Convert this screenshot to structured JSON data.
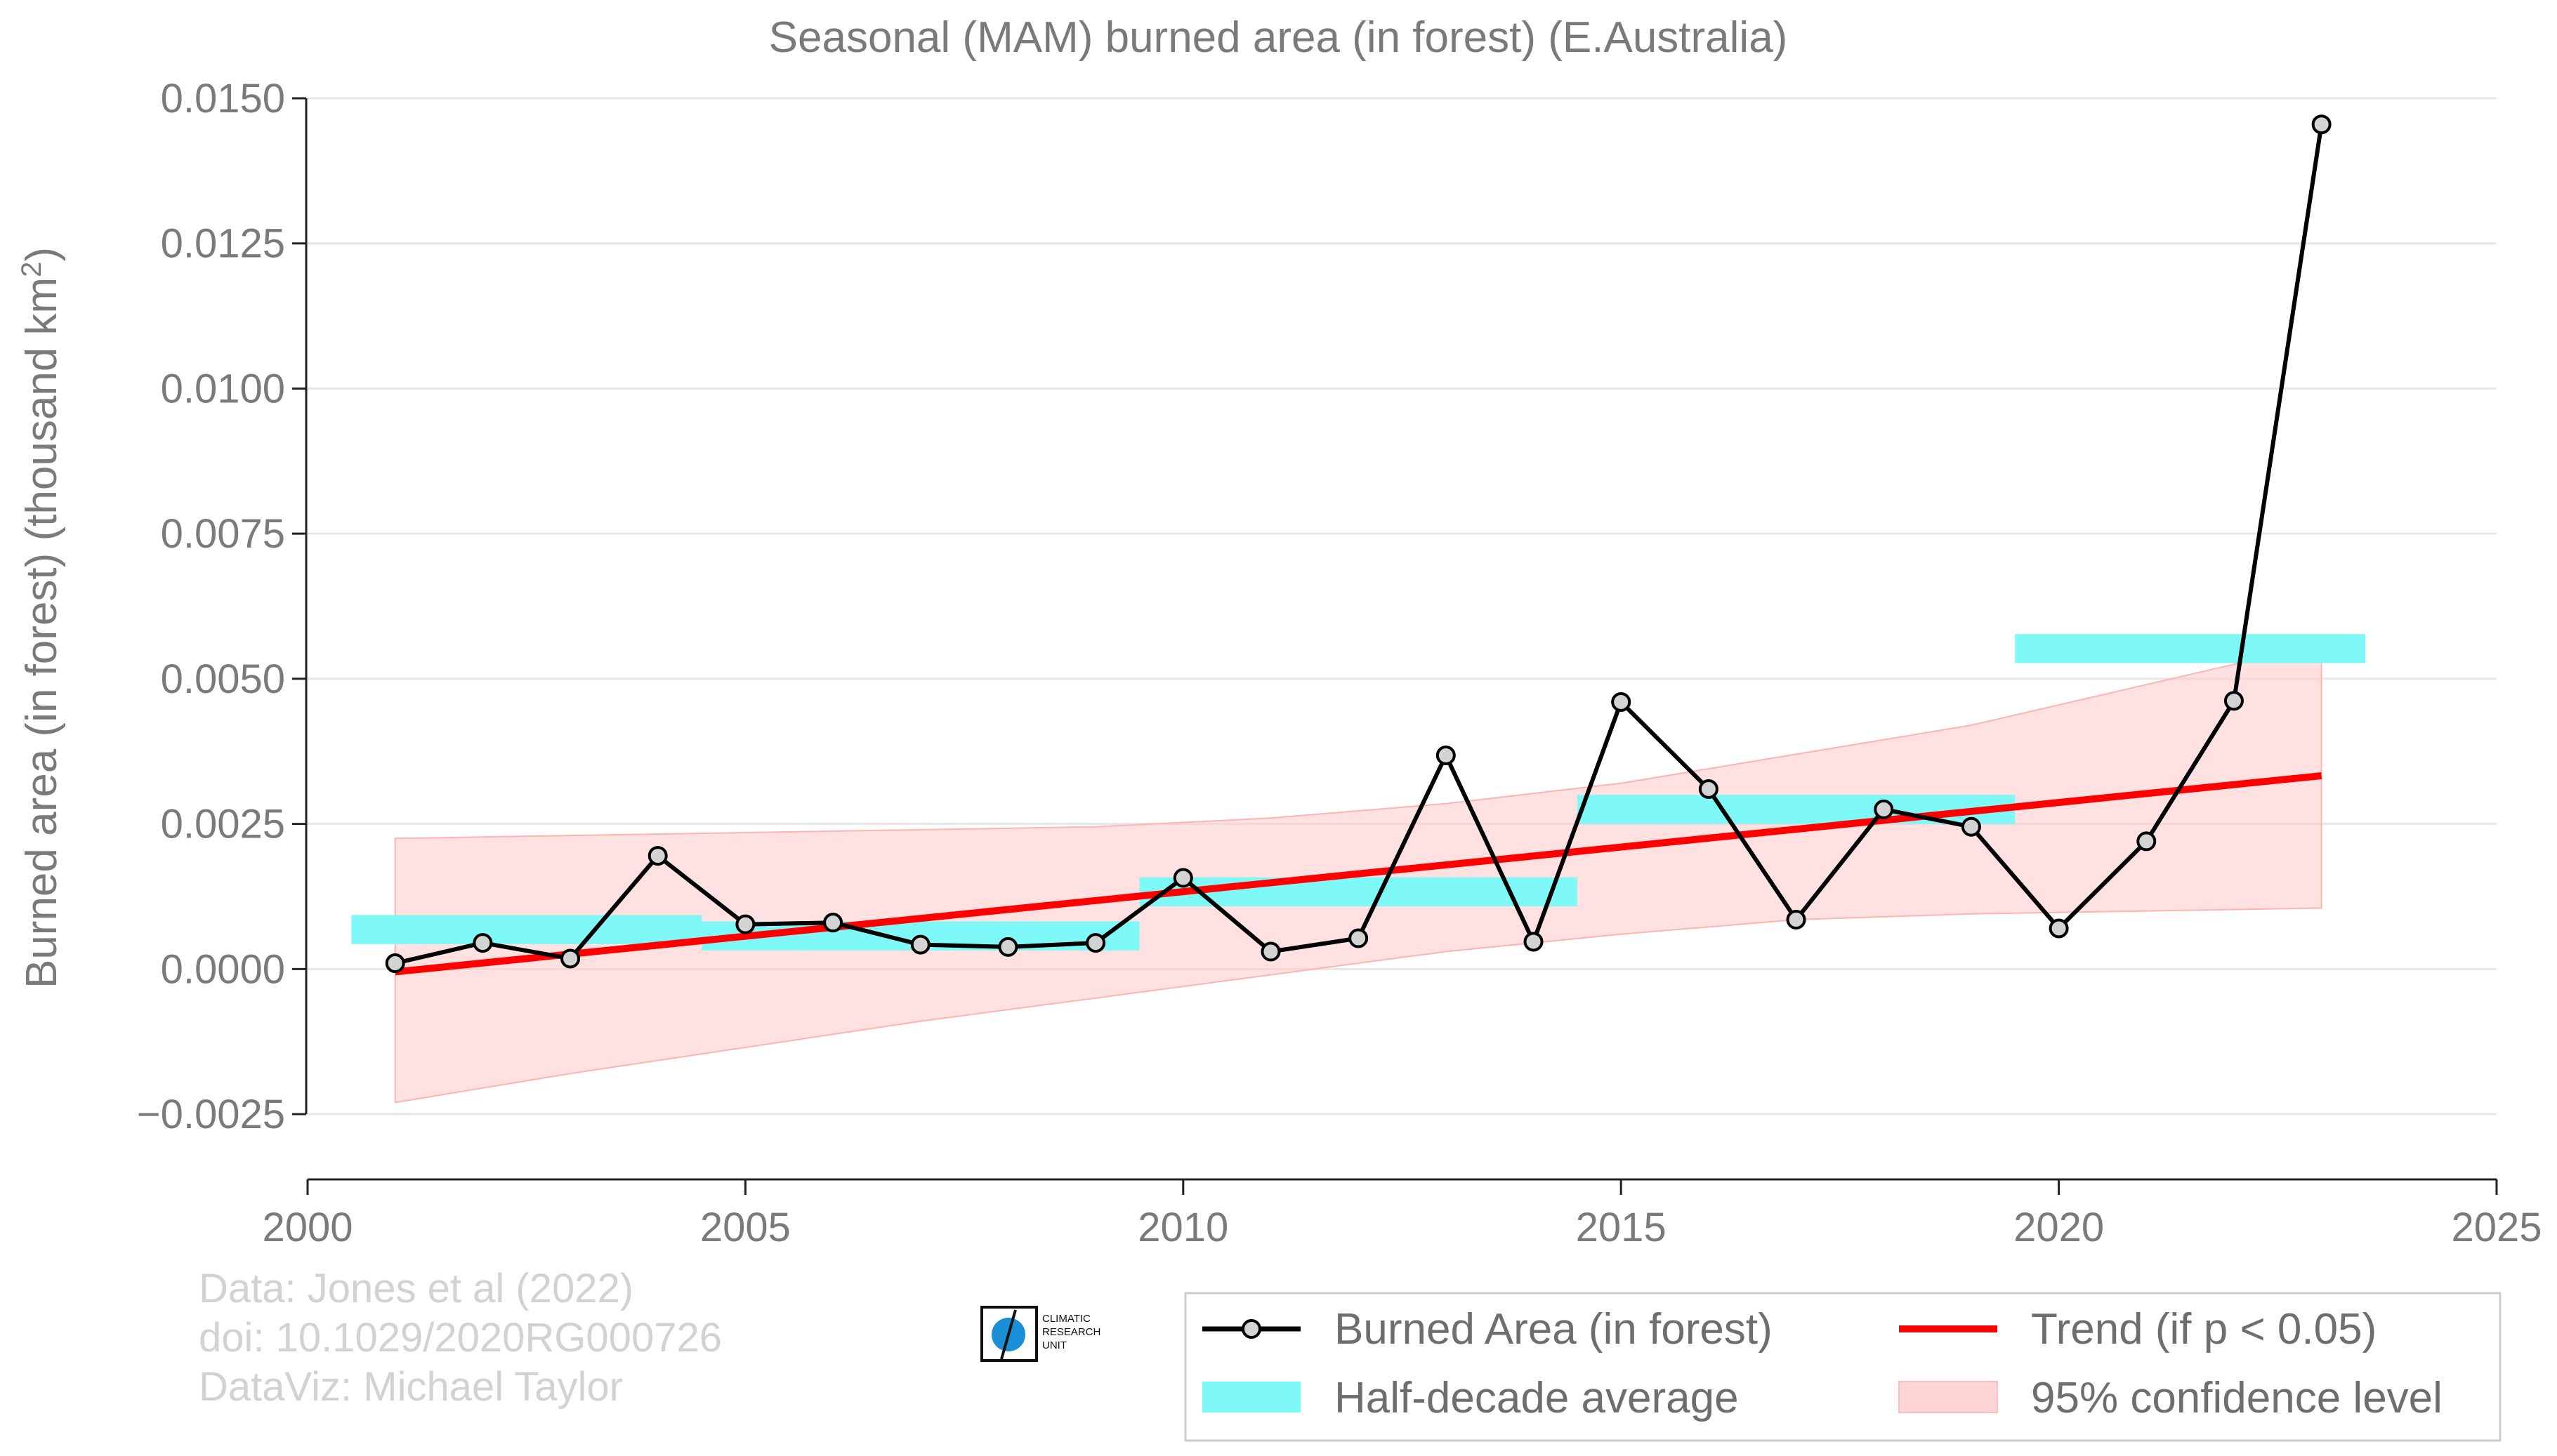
{
  "chart_data": {
    "type": "line",
    "title": "Seasonal (MAM) burned area (in forest) (E.Australia)",
    "ylabel_main": "Burned area (in forest) (thousand km",
    "ylabel_sup": "2",
    "ylabel_end": ")",
    "xlabel": "",
    "xlim": [
      2000,
      2025
    ],
    "ylim": [
      -0.0036,
      0.015
    ],
    "x_ticks": [
      2000,
      2005,
      2010,
      2015,
      2020,
      2025
    ],
    "x_tick_labels": [
      "2000",
      "2005",
      "2010",
      "2015",
      "2020",
      "2025"
    ],
    "y_ticks": [
      -0.0025,
      0.0,
      0.0025,
      0.005,
      0.0075,
      0.01,
      0.0125,
      0.015
    ],
    "y_tick_labels": [
      "−0.0025",
      "0.0000",
      "0.0025",
      "0.0050",
      "0.0075",
      "0.0100",
      "0.0125",
      "0.0150"
    ],
    "grid": "horizontal",
    "legend_position": "bottom-right",
    "series": [
      {
        "name": "Burned Area (in forest)",
        "kind": "line-markers",
        "color": "#000000",
        "marker_fill": "#d3d3d3",
        "x": [
          2001,
          2002,
          2003,
          2004,
          2005,
          2006,
          2007,
          2008,
          2009,
          2010,
          2011,
          2012,
          2013,
          2014,
          2015,
          2016,
          2017,
          2018,
          2019,
          2020,
          2021,
          2022,
          2023
        ],
        "y": [
          0.0001,
          0.00045,
          0.00018,
          0.00195,
          0.00077,
          0.0008,
          0.00042,
          0.00038,
          0.00045,
          0.00157,
          0.0003,
          0.00053,
          0.00368,
          0.00047,
          0.0046,
          0.0031,
          0.00085,
          0.00275,
          0.00245,
          0.0007,
          0.0022,
          0.00462,
          0.01455
        ]
      },
      {
        "name": "Trend (if p < 0.05)",
        "kind": "line",
        "color": "#ff0000",
        "x": [
          2001,
          2023
        ],
        "y": [
          -5e-05,
          0.00333
        ]
      },
      {
        "name": "Half-decade average",
        "kind": "segments",
        "color": "#7ff8f8",
        "segments": [
          {
            "x0": 2000.5,
            "x1": 2004.5,
            "y": 0.00068
          },
          {
            "x0": 2004.5,
            "x1": 2009.5,
            "y": 0.00057
          },
          {
            "x0": 2009.5,
            "x1": 2014.5,
            "y": 0.00133
          },
          {
            "x0": 2014.5,
            "x1": 2019.5,
            "y": 0.00275
          },
          {
            "x0": 2019.5,
            "x1": 2023.5,
            "y": 0.00552
          }
        ],
        "band_halfwidth": 0.00025
      },
      {
        "name": "95% confidence level",
        "kind": "band",
        "color": "#ffc9c9",
        "x": [
          2001,
          2003,
          2005,
          2007,
          2009,
          2011,
          2013,
          2015,
          2017,
          2019,
          2021,
          2023
        ],
        "upper": [
          0.00225,
          0.0023,
          0.00235,
          0.0024,
          0.00245,
          0.0026,
          0.00285,
          0.0032,
          0.0037,
          0.0042,
          0.0049,
          0.0056
        ],
        "lower": [
          -0.0023,
          -0.0018,
          -0.00135,
          -0.0009,
          -0.0005,
          -0.0001,
          0.0003,
          0.0006,
          0.00085,
          0.00095,
          0.001,
          0.00105
        ]
      }
    ],
    "legend": [
      {
        "label": "Burned Area (in forest)",
        "symbol": "line-marker"
      },
      {
        "label": "Trend (if p < 0.05)",
        "symbol": "red-line"
      },
      {
        "label": "Half-decade average",
        "symbol": "cyan-patch"
      },
      {
        "label": "95% confidence level",
        "symbol": "pink-patch"
      }
    ]
  },
  "credits": {
    "line1": "Data: Jones et al (2022)",
    "line2": "doi: 10.1029/2020RG000726",
    "line3": "DataViz: Michael Taylor"
  },
  "logo": {
    "line1": "CLIMATIC",
    "line2": "RESEARCH",
    "line3": "UNIT"
  }
}
